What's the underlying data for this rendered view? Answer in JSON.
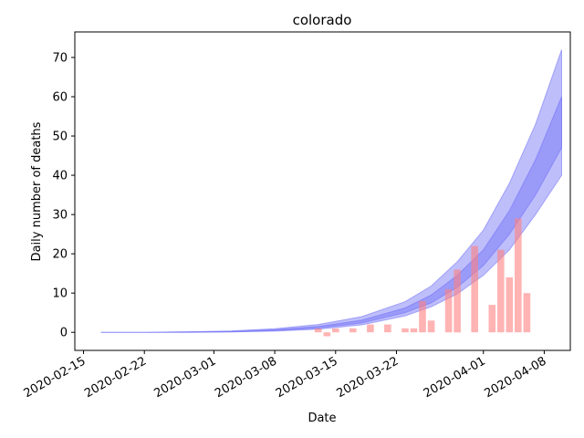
{
  "chart_data": {
    "type": "bar",
    "title": "colorado",
    "xlabel": "Date",
    "ylabel": "Daily number of deaths",
    "x_start": "2020-02-15",
    "xlim": [
      "2020-02-14",
      "2020-04-11"
    ],
    "ylim": [
      -4.6,
      76.5
    ],
    "x_ticks": [
      "2020-02-15",
      "2020-02-22",
      "2020-03-01",
      "2020-03-08",
      "2020-03-15",
      "2020-03-22",
      "2020-04-01",
      "2020-04-08"
    ],
    "y_ticks": [
      0,
      10,
      20,
      30,
      40,
      50,
      60,
      70
    ],
    "grid": false,
    "colors": {
      "bars": "#ff8080",
      "band": "#6f6ff6",
      "axes": "#000000"
    },
    "bars": {
      "dates": [
        "2020-03-13",
        "2020-03-14",
        "2020-03-15",
        "2020-03-17",
        "2020-03-19",
        "2020-03-21",
        "2020-03-23",
        "2020-03-24",
        "2020-03-25",
        "2020-03-26",
        "2020-03-28",
        "2020-03-29",
        "2020-03-31",
        "2020-04-02",
        "2020-04-03",
        "2020-04-04",
        "2020-04-05",
        "2020-04-06"
      ],
      "values": [
        1,
        -1,
        1,
        1,
        2,
        2,
        1,
        1,
        8,
        3,
        11,
        16,
        22,
        7,
        21,
        14,
        29,
        10
      ]
    },
    "band": {
      "dates": [
        "2020-02-17",
        "2020-02-22",
        "2020-02-27",
        "2020-03-03",
        "2020-03-08",
        "2020-03-13",
        "2020-03-18",
        "2020-03-23",
        "2020-03-26",
        "2020-03-29",
        "2020-04-01",
        "2020-04-04",
        "2020-04-07",
        "2020-04-10"
      ],
      "lower_outer": [
        0,
        0,
        0,
        0.1,
        0.3,
        0.8,
        1.9,
        4.2,
        6.5,
        9.8,
        14.5,
        21,
        30,
        40
      ],
      "lower_inner": [
        0,
        0,
        0.05,
        0.15,
        0.45,
        1.1,
        2.4,
        5.0,
        7.5,
        11.5,
        17,
        25,
        35,
        47
      ],
      "upper_inner": [
        0,
        0,
        0.1,
        0.25,
        0.65,
        1.5,
        3.1,
        6.2,
        9.5,
        14.5,
        21,
        31,
        44,
        60
      ],
      "upper_outer": [
        0,
        0,
        0.15,
        0.35,
        0.9,
        2.0,
        4.0,
        7.8,
        11.8,
        18,
        26,
        38,
        53,
        72
      ]
    }
  }
}
